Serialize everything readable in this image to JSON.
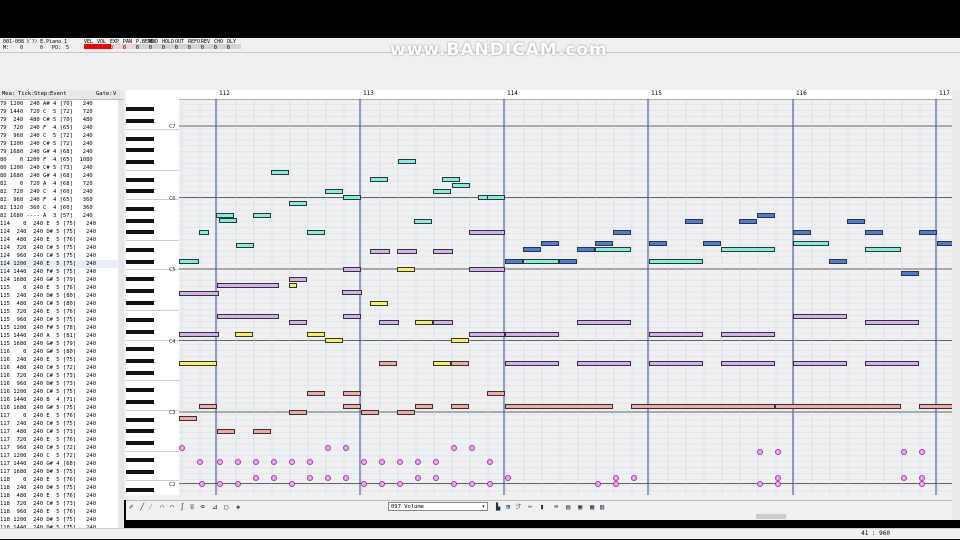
{
  "window": {
    "title": "001-008 ﾋﾟｱﾉ E.Piano 1"
  },
  "watermark": "www.BANDICAM.com",
  "top_controls": {
    "m_label": "M:",
    "m_value": "0",
    "l_value": "0",
    "po_label": "PO:",
    "po_value": "5",
    "headers": [
      "VEL",
      "VOL",
      "EXP",
      "PAN",
      "P.BEND",
      "MOD",
      "HOLD",
      "OUT",
      "REFO",
      "REV",
      "CHO",
      "DLY"
    ],
    "values": [
      "100",
      "127",
      "0",
      "0",
      "0",
      "0",
      "0",
      "0",
      "0",
      "0",
      "0",
      "0"
    ]
  },
  "event_list": {
    "headers": [
      "Mea:",
      "Tick:",
      "Step:",
      "Event",
      "Gate:",
      "V"
    ],
    "rows": [
      "79 1200  240 A# 4 [70]   240",
      "79 1440  720 C  5 [72]   720",
      "79  240  480 C# 5 [70]   480",
      "79  720  240 F  4 [65]   240",
      "79  960  240 C  5 [72]   240",
      "79 1200  240 C# 5 [72]   240",
      "79 1680  240 G# 4 [68]   240",
      "80    0 1200 F  4 [65]  1080",
      "80 1200  240 C# 5 [73]   240",
      "80 1680  240 G# 4 [68]   240",
      "81    0  720 A  4 [68]   720",
      "81  720  240 C  4 [60]   240",
      "81  960  240 F  4 [65]   360",
      "81 1320  360 C  4 [60]   360",
      "81 1680 ---- A  3 [57]   240",
      "114    0  240 E  5 [75]   240",
      "114  240  240 D# 5 [75]   240",
      "114  480  240 E  5 [76]   240",
      "114  720  240 C# 5 [75]   240",
      "114  960  240 C# 5 [75]   240",
      "114 1200  240 E  5 [75]   240",
      "114 1440  240 F# 5 [75]   240",
      "114 1680  240 G# 5 [79]   240",
      "115    0  240 E  5 [76]   240",
      "115  240  240 D# 5 [80]   240",
      "115  480  240 C# 5 [80]   240",
      "115  720  240 E  5 [76]   240",
      "115  960  240 C# 5 [75]   240",
      "115 1200  240 F# 5 [78]   240",
      "115 1440  240 A  5 [81]   240",
      "115 1680  240 G# 5 [79]   240",
      "116    0  240 G# 5 [80]   240",
      "116  240  240 E  5 [75]   240",
      "116  480  240 C# 5 [72]   240",
      "116  720  240 C# 5 [73]   240",
      "116  960  240 D# 5 [73]   240",
      "116 1200  240 C# 5 [75]   240",
      "116 1440  240 B  4 [71]   240",
      "116 1680  240 G# 5 [75]   240",
      "117    0  240 E  5 [76]   240",
      "117  240  240 C# 5 [75]   240",
      "117  480  240 C# 5 [73]   240",
      "117  720  240 E  5 [76]   240",
      "117  960  240 C# 5 [72]   240",
      "117 1200  240 C  5 [72]   240",
      "117 1440  240 G# 4 [68]   240",
      "117 1680  240 D# 5 [75]   240",
      "118    0  240 E  5 [76]   240",
      "118  240  240 D# 5 [75]   240",
      "118  480  240 E  5 [76]   240",
      "118  720  240 C# 5 [73]   240",
      "118  960  240 E  5 [76]   240",
      "118 1200  240 D# 5 [75]   240",
      "118 1440  240 D# 5 [75]   240"
    ],
    "selected_index": 20
  },
  "piano_roll": {
    "octave_labels": [
      "C7",
      "C6",
      "C5",
      "C4",
      "C3",
      "C2"
    ],
    "measures": [
      "112",
      "113",
      "114",
      "115",
      "116",
      "117"
    ]
  },
  "toolbar": {
    "controller": "097 Volume"
  },
  "status": {
    "position": "41 : 960"
  }
}
